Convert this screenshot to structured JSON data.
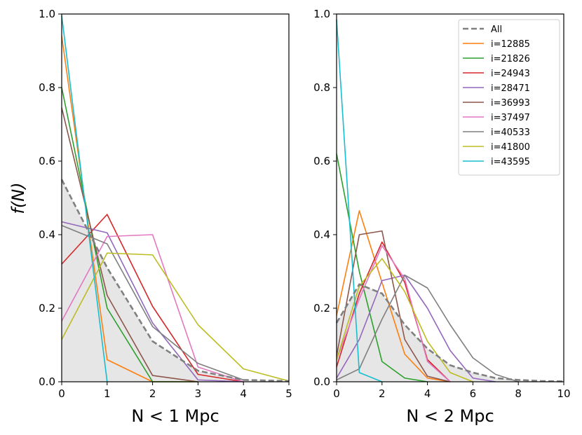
{
  "chart_data": {
    "type": "line",
    "ylabel": "f(N)",
    "colors": {
      "All": "#808080",
      "i=12885": "#ff7f0e",
      "i=21826": "#2ca02c",
      "i=24943": "#d62728",
      "i=28471": "#9467bd",
      "i=36993": "#8c564b",
      "i=37497": "#e377c2",
      "i=40533": "#7f7f7f",
      "i=41800": "#bcbd22",
      "i=43595": "#17becf"
    },
    "panels": [
      {
        "xlabel": "N < 1 Mpc",
        "xlim": [
          0,
          5
        ],
        "ylim": [
          0,
          1.0
        ],
        "xticks": [
          "0",
          "1",
          "2",
          "3",
          "4",
          "5"
        ],
        "yticks": [
          "0.0",
          "0.2",
          "0.4",
          "0.6",
          "0.8",
          "1.0"
        ],
        "all": {
          "name": "All",
          "x": [
            0,
            1,
            2,
            3,
            4,
            5
          ],
          "values": [
            0.55,
            0.31,
            0.11,
            0.03,
            0.005,
            0.002
          ]
        },
        "series": [
          {
            "name": "i=12885",
            "x": [
              0,
              1,
              2,
              3
            ],
            "values": [
              0.94,
              0.06,
              0.0,
              0.0
            ]
          },
          {
            "name": "i=21826",
            "x": [
              0,
              1,
              2,
              3
            ],
            "values": [
              0.8,
              0.2,
              0.0,
              0.0
            ]
          },
          {
            "name": "i=24943",
            "x": [
              0,
              1,
              2,
              3,
              4
            ],
            "values": [
              0.32,
              0.455,
              0.205,
              0.02,
              0.0
            ]
          },
          {
            "name": "i=28471",
            "x": [
              0,
              1,
              2,
              3,
              4
            ],
            "values": [
              0.435,
              0.405,
              0.16,
              0.005,
              0.0
            ]
          },
          {
            "name": "i=36993",
            "x": [
              0,
              1,
              2,
              3
            ],
            "values": [
              0.745,
              0.235,
              0.017,
              0.0
            ]
          },
          {
            "name": "i=37497",
            "x": [
              0,
              1,
              2,
              3,
              4
            ],
            "values": [
              0.165,
              0.395,
              0.4,
              0.04,
              0.0
            ]
          },
          {
            "name": "i=40533",
            "x": [
              0,
              1,
              2,
              3,
              4
            ],
            "values": [
              0.425,
              0.375,
              0.15,
              0.05,
              0.005
            ]
          },
          {
            "name": "i=41800",
            "x": [
              0,
              1,
              2,
              3,
              4,
              5
            ],
            "values": [
              0.115,
              0.35,
              0.345,
              0.155,
              0.035,
              0.002
            ]
          },
          {
            "name": "i=43595",
            "x": [
              0,
              1
            ],
            "values": [
              0.995,
              0.0
            ]
          }
        ]
      },
      {
        "xlabel": "N < 2 Mpc",
        "xlim": [
          0,
          10
        ],
        "ylim": [
          0,
          1.0
        ],
        "xticks": [
          "0",
          "2",
          "4",
          "6",
          "8",
          "10"
        ],
        "yticks": [
          "0.0",
          "0.2",
          "0.4",
          "0.6",
          "0.8",
          "1.0"
        ],
        "all": {
          "name": "All",
          "x": [
            0,
            1,
            2,
            3,
            4,
            5,
            6,
            7,
            8,
            9,
            10
          ],
          "values": [
            0.16,
            0.265,
            0.24,
            0.155,
            0.09,
            0.045,
            0.025,
            0.01,
            0.005,
            0.002,
            0.001
          ]
        },
        "series": [
          {
            "name": "i=12885",
            "x": [
              0,
              1,
              2,
              3,
              4,
              5
            ],
            "values": [
              0.18,
              0.465,
              0.27,
              0.075,
              0.01,
              0.0
            ]
          },
          {
            "name": "i=21826",
            "x": [
              0,
              1,
              2,
              3,
              4
            ],
            "values": [
              0.62,
              0.3,
              0.055,
              0.01,
              0.0
            ]
          },
          {
            "name": "i=24943",
            "x": [
              0,
              1,
              2,
              3,
              4,
              5
            ],
            "values": [
              0.04,
              0.24,
              0.38,
              0.27,
              0.06,
              0.0
            ]
          },
          {
            "name": "i=28471",
            "x": [
              0,
              1,
              2,
              3,
              4,
              5,
              6,
              7
            ],
            "values": [
              0.01,
              0.115,
              0.275,
              0.29,
              0.2,
              0.085,
              0.01,
              0.0
            ]
          },
          {
            "name": "i=36993",
            "x": [
              0,
              1,
              2,
              3,
              4,
              5
            ],
            "values": [
              0.07,
              0.4,
              0.41,
              0.115,
              0.015,
              0.0
            ]
          },
          {
            "name": "i=37497",
            "x": [
              0,
              1,
              2,
              3,
              4,
              5
            ],
            "values": [
              0.06,
              0.225,
              0.37,
              0.28,
              0.055,
              0.0
            ]
          },
          {
            "name": "i=40533",
            "x": [
              0,
              1,
              2,
              3,
              4,
              5,
              6,
              7,
              8
            ],
            "values": [
              0.005,
              0.035,
              0.17,
              0.29,
              0.255,
              0.155,
              0.065,
              0.02,
              0.0
            ]
          },
          {
            "name": "i=41800",
            "x": [
              0,
              1,
              2,
              3,
              4,
              5,
              6
            ],
            "values": [
              0.06,
              0.26,
              0.335,
              0.245,
              0.11,
              0.025,
              0.0
            ]
          },
          {
            "name": "i=43595",
            "x": [
              0,
              1,
              2
            ],
            "values": [
              0.985,
              0.025,
              0.0
            ]
          }
        ]
      }
    ],
    "legend": {
      "entries": [
        "All",
        "i=12885",
        "i=21826",
        "i=24943",
        "i=28471",
        "i=36993",
        "i=37497",
        "i=40533",
        "i=41800",
        "i=43595"
      ]
    }
  }
}
